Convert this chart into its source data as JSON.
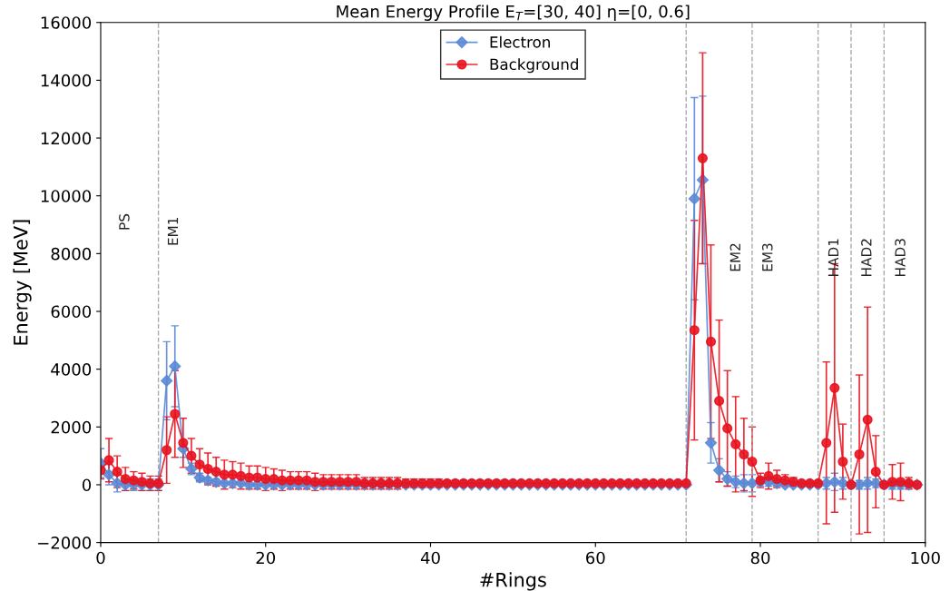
{
  "chart_data": {
    "type": "line",
    "title": "Mean Energy Profile E$_{T}$=[30, 40] η=[0, 0.6]",
    "xlabel": "#Rings",
    "ylabel": "Energy [MeV]",
    "x": [
      0,
      1,
      2,
      3,
      4,
      5,
      6,
      7,
      8,
      9,
      10,
      11,
      12,
      13,
      14,
      15,
      16,
      17,
      18,
      19,
      20,
      21,
      22,
      23,
      24,
      25,
      26,
      27,
      28,
      29,
      30,
      31,
      32,
      33,
      34,
      35,
      36,
      37,
      38,
      39,
      40,
      41,
      42,
      43,
      44,
      45,
      46,
      47,
      48,
      49,
      50,
      51,
      52,
      53,
      54,
      55,
      56,
      57,
      58,
      59,
      60,
      61,
      62,
      63,
      64,
      65,
      66,
      67,
      68,
      69,
      70,
      71,
      72,
      73,
      74,
      75,
      76,
      77,
      78,
      79,
      80,
      81,
      82,
      83,
      84,
      85,
      86,
      87,
      88,
      89,
      90,
      91,
      92,
      93,
      94,
      95,
      96,
      97,
      98,
      99
    ],
    "series": [
      {
        "name": "Electron",
        "color": "#5a8ad6",
        "marker": "diamond",
        "values": [
          750,
          350,
          50,
          0,
          0,
          0,
          0,
          0,
          3600,
          4100,
          1250,
          550,
          250,
          150,
          100,
          50,
          50,
          50,
          0,
          0,
          0,
          0,
          0,
          0,
          0,
          0,
          0,
          0,
          0,
          0,
          0,
          0,
          0,
          0,
          0,
          0,
          0,
          0,
          0,
          0,
          0,
          0,
          0,
          0,
          0,
          0,
          0,
          0,
          0,
          0,
          0,
          0,
          0,
          0,
          0,
          0,
          0,
          0,
          0,
          0,
          0,
          0,
          0,
          0,
          0,
          0,
          0,
          0,
          0,
          0,
          0,
          0,
          9900,
          10550,
          1450,
          500,
          200,
          100,
          50,
          50,
          100,
          100,
          50,
          0,
          0,
          0,
          0,
          0,
          50,
          100,
          50,
          0,
          0,
          50,
          50,
          0,
          0,
          0,
          0,
          0
        ],
        "errors": [
          500,
          350,
          300,
          200,
          200,
          200,
          200,
          200,
          1350,
          1400,
          300,
          200,
          150,
          100,
          100,
          null,
          null,
          null,
          null,
          null,
          null,
          null,
          null,
          null,
          null,
          null,
          null,
          null,
          null,
          null,
          null,
          null,
          null,
          null,
          null,
          null,
          null,
          null,
          null,
          null,
          null,
          null,
          null,
          null,
          null,
          null,
          null,
          null,
          null,
          null,
          null,
          null,
          null,
          null,
          null,
          null,
          null,
          null,
          null,
          null,
          null,
          null,
          null,
          null,
          null,
          null,
          null,
          null,
          null,
          null,
          null,
          null,
          3500,
          2900,
          700,
          400,
          250,
          200,
          300,
          300,
          150,
          150,
          100,
          null,
          null,
          null,
          null,
          null,
          200,
          300,
          200,
          null,
          150,
          200,
          150,
          null,
          150,
          150,
          100,
          null
        ]
      },
      {
        "name": "Background",
        "color": "#e8131f",
        "marker": "circle",
        "values": [
          500,
          850,
          450,
          200,
          150,
          100,
          50,
          50,
          1200,
          2450,
          1450,
          1000,
          700,
          550,
          450,
          350,
          350,
          300,
          250,
          250,
          200,
          200,
          150,
          150,
          150,
          150,
          100,
          100,
          100,
          100,
          100,
          100,
          50,
          50,
          50,
          50,
          50,
          50,
          50,
          50,
          50,
          50,
          50,
          50,
          50,
          50,
          50,
          50,
          50,
          50,
          50,
          50,
          50,
          50,
          50,
          50,
          50,
          50,
          50,
          50,
          50,
          50,
          50,
          50,
          50,
          50,
          50,
          50,
          50,
          50,
          50,
          50,
          5350,
          11300,
          4950,
          2900,
          1950,
          1400,
          1050,
          800,
          150,
          300,
          200,
          150,
          100,
          50,
          50,
          50,
          1450,
          3350,
          800,
          0,
          1050,
          2250,
          450,
          0,
          100,
          100,
          50,
          0
        ],
        "errors": [
          300,
          750,
          550,
          400,
          300,
          300,
          250,
          250,
          1150,
          1500,
          850,
          600,
          550,
          550,
          500,
          500,
          450,
          450,
          400,
          400,
          400,
          350,
          350,
          300,
          300,
          300,
          300,
          250,
          250,
          250,
          250,
          250,
          200,
          200,
          200,
          200,
          200,
          150,
          150,
          150,
          150,
          150,
          100,
          100,
          100,
          100,
          100,
          100,
          100,
          100,
          null,
          null,
          null,
          null,
          null,
          null,
          null,
          null,
          null,
          null,
          null,
          null,
          null,
          null,
          null,
          null,
          null,
          null,
          null,
          null,
          null,
          null,
          3800,
          3650,
          3350,
          2800,
          2000,
          1650,
          1250,
          1200,
          250,
          450,
          300,
          200,
          150,
          null,
          null,
          null,
          2800,
          4300,
          1300,
          null,
          2750,
          3900,
          1250,
          null,
          600,
          650,
          200,
          null
        ]
      }
    ],
    "xlim": [
      0,
      100
    ],
    "xticks": [
      0,
      20,
      40,
      60,
      80,
      100
    ],
    "ylim": [
      -2000,
      16000
    ],
    "yticks": [
      {
        "value": -2000,
        "label": "−2000"
      },
      0,
      2000,
      4000,
      6000,
      8000,
      10000,
      12000,
      14000,
      16000
    ],
    "ref_lines": [
      {
        "axis": "x",
        "value": 7,
        "color": "#aaaaaa",
        "line_style": "dashed"
      },
      {
        "axis": "x",
        "value": 71,
        "color": "#aaaaaa",
        "line_style": "dashed"
      },
      {
        "axis": "x",
        "value": 79,
        "color": "#aaaaaa",
        "line_style": "dashed"
      },
      {
        "axis": "x",
        "value": 87,
        "color": "#aaaaaa",
        "line_style": "dashed"
      },
      {
        "axis": "x",
        "value": 91,
        "color": "#aaaaaa",
        "line_style": "dashed"
      },
      {
        "axis": "x",
        "value": 95,
        "color": "#aaaaaa",
        "line_style": "dashed"
      }
    ],
    "annotations": [
      "PS",
      "EM1",
      "EM2",
      "EM3",
      "HAD1",
      "HAD2",
      "HAD3"
    ],
    "legend": "top center",
    "grid": false
  }
}
